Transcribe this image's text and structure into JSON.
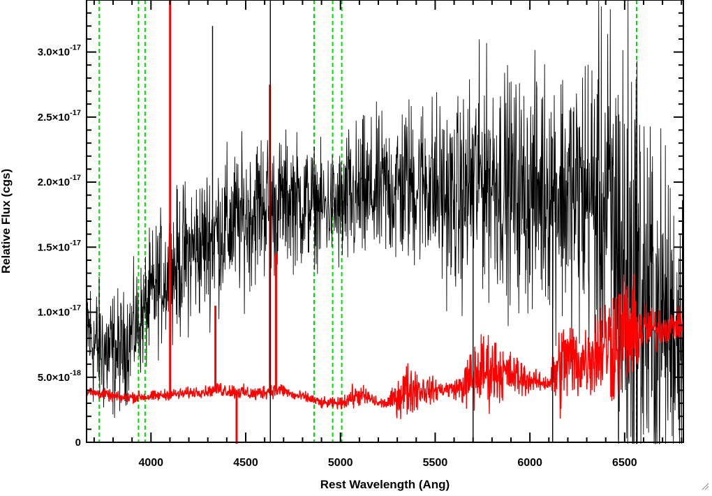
{
  "chart_data": {
    "type": "line",
    "title": "",
    "xlabel": "Rest Wavelength (Ang)",
    "ylabel": "Relative Flux (cgs)",
    "xlim": [
      3660,
      6810
    ],
    "ylim": [
      0,
      3.4e-17
    ],
    "xticks": [
      {
        "value": 4000,
        "label": "4000"
      },
      {
        "value": 4500,
        "label": "4500"
      },
      {
        "value": 5000,
        "label": "5000"
      },
      {
        "value": 5500,
        "label": "5500"
      },
      {
        "value": 6000,
        "label": "6000"
      },
      {
        "value": 6500,
        "label": "6500"
      }
    ],
    "yticks": [
      {
        "value": 0,
        "mantissa": "0",
        "exponent": ""
      },
      {
        "value": 5e-18,
        "mantissa": "5.0×10",
        "exponent": "-18"
      },
      {
        "value": 1e-17,
        "mantissa": "1.0×10",
        "exponent": "-17"
      },
      {
        "value": 1.5e-17,
        "mantissa": "1.5×10",
        "exponent": "-17"
      },
      {
        "value": 2e-17,
        "mantissa": "2.0×10",
        "exponent": "-17"
      },
      {
        "value": 2.5e-17,
        "mantissa": "2.5×10",
        "exponent": "-17"
      },
      {
        "value": 3e-17,
        "mantissa": "3.0×10",
        "exponent": "-17"
      }
    ],
    "vertical_lines": {
      "color": "#00e000",
      "style": "dashed",
      "x": [
        3727,
        3934,
        3969,
        4861,
        4959,
        5007,
        6563
      ]
    },
    "series": [
      {
        "color": "#000000",
        "x": [
          3660,
          3700,
          3750,
          3800,
          3850,
          3900,
          3950,
          4000,
          4050,
          4100,
          4150,
          4200,
          4250,
          4300,
          4350,
          4400,
          4450,
          4500,
          4550,
          4600,
          4650,
          4700,
          4750,
          4800,
          4850,
          4900,
          4950,
          5000,
          5050,
          5100,
          5150,
          5200,
          5250,
          5300,
          5350,
          5400,
          5450,
          5500,
          5550,
          5600,
          5650,
          5700,
          5750,
          5800,
          5850,
          5900,
          5950,
          6000,
          6050,
          6100,
          6150,
          6200,
          6250,
          6300,
          6350,
          6400,
          6450,
          6500,
          6550,
          6600,
          6650,
          6700,
          6750,
          6800
        ],
        "y": [
          9e-18,
          7.5e-18,
          7e-18,
          6.8e-18,
          7e-18,
          8.5e-18,
          9.5e-18,
          1.1e-17,
          1.25e-17,
          1.3e-17,
          1.38e-17,
          1.45e-17,
          1.5e-17,
          1.55e-17,
          1.62e-17,
          1.65e-17,
          1.68e-17,
          1.72e-17,
          1.8e-17,
          1.85e-17,
          1.8e-17,
          1.85e-17,
          1.88e-17,
          1.82e-17,
          1.85e-17,
          1.8e-17,
          1.82e-17,
          1.78e-17,
          1.85e-17,
          1.88e-17,
          1.9e-17,
          1.92e-17,
          1.95e-17,
          1.95e-17,
          2e-17,
          1.98e-17,
          2.02e-17,
          1.95e-17,
          1.9e-17,
          1.85e-17,
          1.88e-17,
          2e-17,
          2.05e-17,
          2.05e-17,
          2e-17,
          1.95e-17,
          1.92e-17,
          1.9e-17,
          1.95e-17,
          1.98e-17,
          1.95e-17,
          1.9e-17,
          1.88e-17,
          1.9e-17,
          1.85e-17,
          1.8e-17,
          1.6e-17,
          1.3e-17,
          1.2e-17,
          1.1e-17,
          1e-17,
          9.5e-18,
          9e-18,
          9e-18
        ],
        "noise": [
          3.5e-18,
          3.5e-18,
          3.5e-18,
          3.5e-18,
          3e-18,
          3e-18,
          3e-18,
          3.5e-18,
          3.5e-18,
          3.5e-18,
          4e-18,
          4e-18,
          4e-18,
          4e-18,
          4e-18,
          4e-18,
          4e-18,
          4e-18,
          4e-18,
          4e-18,
          3.5e-18,
          3.5e-18,
          3.5e-18,
          3.5e-18,
          3e-18,
          3e-18,
          3e-18,
          3.5e-18,
          4e-18,
          4e-18,
          4e-18,
          4e-18,
          4e-18,
          4.5e-18,
          4.5e-18,
          4.5e-18,
          4.5e-18,
          5e-18,
          5e-18,
          5e-18,
          5.5e-18,
          6e-18,
          6e-18,
          6e-18,
          6e-18,
          6e-18,
          6e-18,
          6e-18,
          6.5e-18,
          6.5e-18,
          7e-18,
          7e-18,
          7.5e-18,
          8e-18,
          9e-18,
          1e-17,
          1.2e-17,
          1.4e-17,
          1.4e-17,
          1.2e-17,
          1e-17,
          9e-18,
          8e-18,
          8e-18
        ]
      },
      {
        "color": "#ff0000",
        "x": [
          3660,
          3700,
          3750,
          3800,
          3850,
          3900,
          3950,
          4000,
          4050,
          4100,
          4150,
          4200,
          4250,
          4300,
          4350,
          4400,
          4450,
          4500,
          4550,
          4600,
          4650,
          4700,
          4750,
          4800,
          4850,
          4900,
          4950,
          5000,
          5050,
          5100,
          5150,
          5200,
          5250,
          5300,
          5350,
          5400,
          5450,
          5500,
          5550,
          5600,
          5650,
          5700,
          5750,
          5800,
          5850,
          5900,
          5950,
          6000,
          6050,
          6100,
          6150,
          6200,
          6250,
          6300,
          6350,
          6400,
          6450,
          6500,
          6550,
          6600,
          6650,
          6700,
          6750,
          6800
        ],
        "y": [
          3.9e-18,
          3.8e-18,
          3.7e-18,
          3.5e-18,
          3.4e-18,
          3.5e-18,
          3.5e-18,
          3.5e-18,
          3.6e-18,
          3.7e-18,
          3.7e-18,
          3.8e-18,
          3.9e-18,
          3.9e-18,
          4.1e-18,
          4e-18,
          3.9e-18,
          3.8e-18,
          3.7e-18,
          3.9e-18,
          4e-18,
          4e-18,
          3.6e-18,
          3.5e-18,
          3.3e-18,
          3e-18,
          3e-18,
          3e-18,
          3.4e-18,
          3.6e-18,
          3.4e-18,
          3e-18,
          3e-18,
          3.5e-18,
          4e-18,
          4.2e-18,
          4e-18,
          4e-18,
          4.1e-18,
          4.1e-18,
          4.3e-18,
          5e-18,
          5.5e-18,
          5.6e-18,
          5.4e-18,
          5.2e-18,
          5e-18,
          4.8e-18,
          4.6e-18,
          4.6e-18,
          5.5e-18,
          6.5e-18,
          6e-18,
          6.5e-18,
          7e-18,
          7.5e-18,
          8e-18,
          8.5e-18,
          8.5e-18,
          8.7e-18,
          8.7e-18,
          8.8e-18,
          9e-18,
          9e-18
        ],
        "noise": [
          3e-19,
          3e-19,
          3e-19,
          3e-19,
          3e-19,
          3e-19,
          3e-19,
          3e-19,
          3e-19,
          3e-19,
          3e-19,
          3e-19,
          3e-19,
          3e-19,
          4e-19,
          4e-19,
          4e-19,
          4e-19,
          4e-19,
          4e-19,
          4e-19,
          4e-19,
          3e-19,
          3e-19,
          3e-19,
          3e-19,
          3e-19,
          3e-19,
          6e-19,
          6e-19,
          5e-19,
          3e-19,
          3e-19,
          1e-18,
          1.5e-18,
          1.2e-18,
          8e-19,
          6e-19,
          5e-19,
          5e-19,
          1e-18,
          2e-18,
          2e-18,
          2e-18,
          1.5e-18,
          1.2e-18,
          1.2e-18,
          7e-19,
          5e-19,
          5e-19,
          2.5e-18,
          2.5e-18,
          2e-18,
          2e-18,
          2.5e-18,
          3e-18,
          3.5e-18,
          3.5e-18,
          2.5e-18,
          1.5e-18,
          1.2e-18,
          1e-18,
          8e-19,
          8e-19
        ]
      }
    ],
    "spikes": [
      {
        "series": 1,
        "x": 4101,
        "y": 3.4e-17
      },
      {
        "series": 1,
        "x": 4340,
        "y": 1.05e-17
      },
      {
        "series": 1,
        "x": 4452,
        "y": -1e-18
      },
      {
        "series": 1,
        "x": 4628,
        "y": 2.75e-17
      },
      {
        "series": 1,
        "x": 4660,
        "y": 1.45e-17
      },
      {
        "series": 0,
        "x": 4325,
        "y": 3.2e-17
      },
      {
        "series": 0,
        "x": 4630,
        "y": 3.4e-17
      },
      {
        "series": 0,
        "x": 4630,
        "y": 0
      },
      {
        "series": 0,
        "x": 5700,
        "y": 0
      },
      {
        "series": 0,
        "x": 6120,
        "y": 0
      }
    ]
  }
}
